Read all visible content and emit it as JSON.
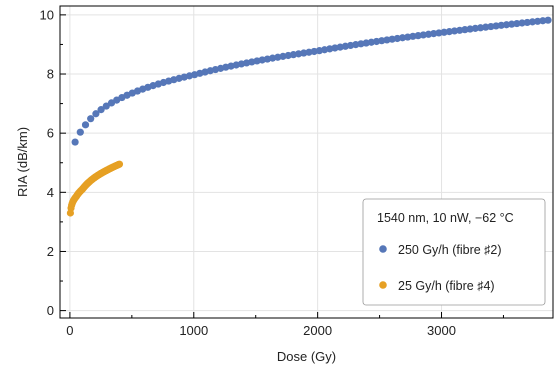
{
  "chart_data": {
    "type": "scatter",
    "title": "",
    "xlabel": "Dose (Gy)",
    "ylabel": "RIA (dB/km)",
    "xlim": [
      -80,
      3900
    ],
    "ylim": [
      -0.25,
      10.3
    ],
    "xticks": [
      0,
      1000,
      2000,
      3000
    ],
    "yticks": [
      0,
      2,
      4,
      6,
      8,
      10
    ],
    "grid": true,
    "legend": {
      "placement": "bottom-right",
      "title": "1540 nm, 10 nW, −62 °C"
    },
    "series": [
      {
        "name": "250 Gy/h (fibre ♯2)",
        "color": "#5677b8",
        "model": "power",
        "x_start": 42,
        "x_end": 3860,
        "count": 92,
        "y_at": {
          "42": 5.7,
          "100": 6.12,
          "200": 6.62,
          "500": 7.35,
          "1000": 7.97,
          "2000": 8.78,
          "3000": 9.4,
          "3860": 9.82
        }
      },
      {
        "name": "25 Gy/h (fibre ♯4)",
        "color": "#e6a024",
        "model": "power",
        "x_start": 4,
        "x_end": 400,
        "count": 80,
        "y_at": {
          "4": 3.3,
          "50": 3.85,
          "100": 4.1,
          "200": 4.5,
          "300": 4.75,
          "400": 4.95
        }
      }
    ]
  }
}
